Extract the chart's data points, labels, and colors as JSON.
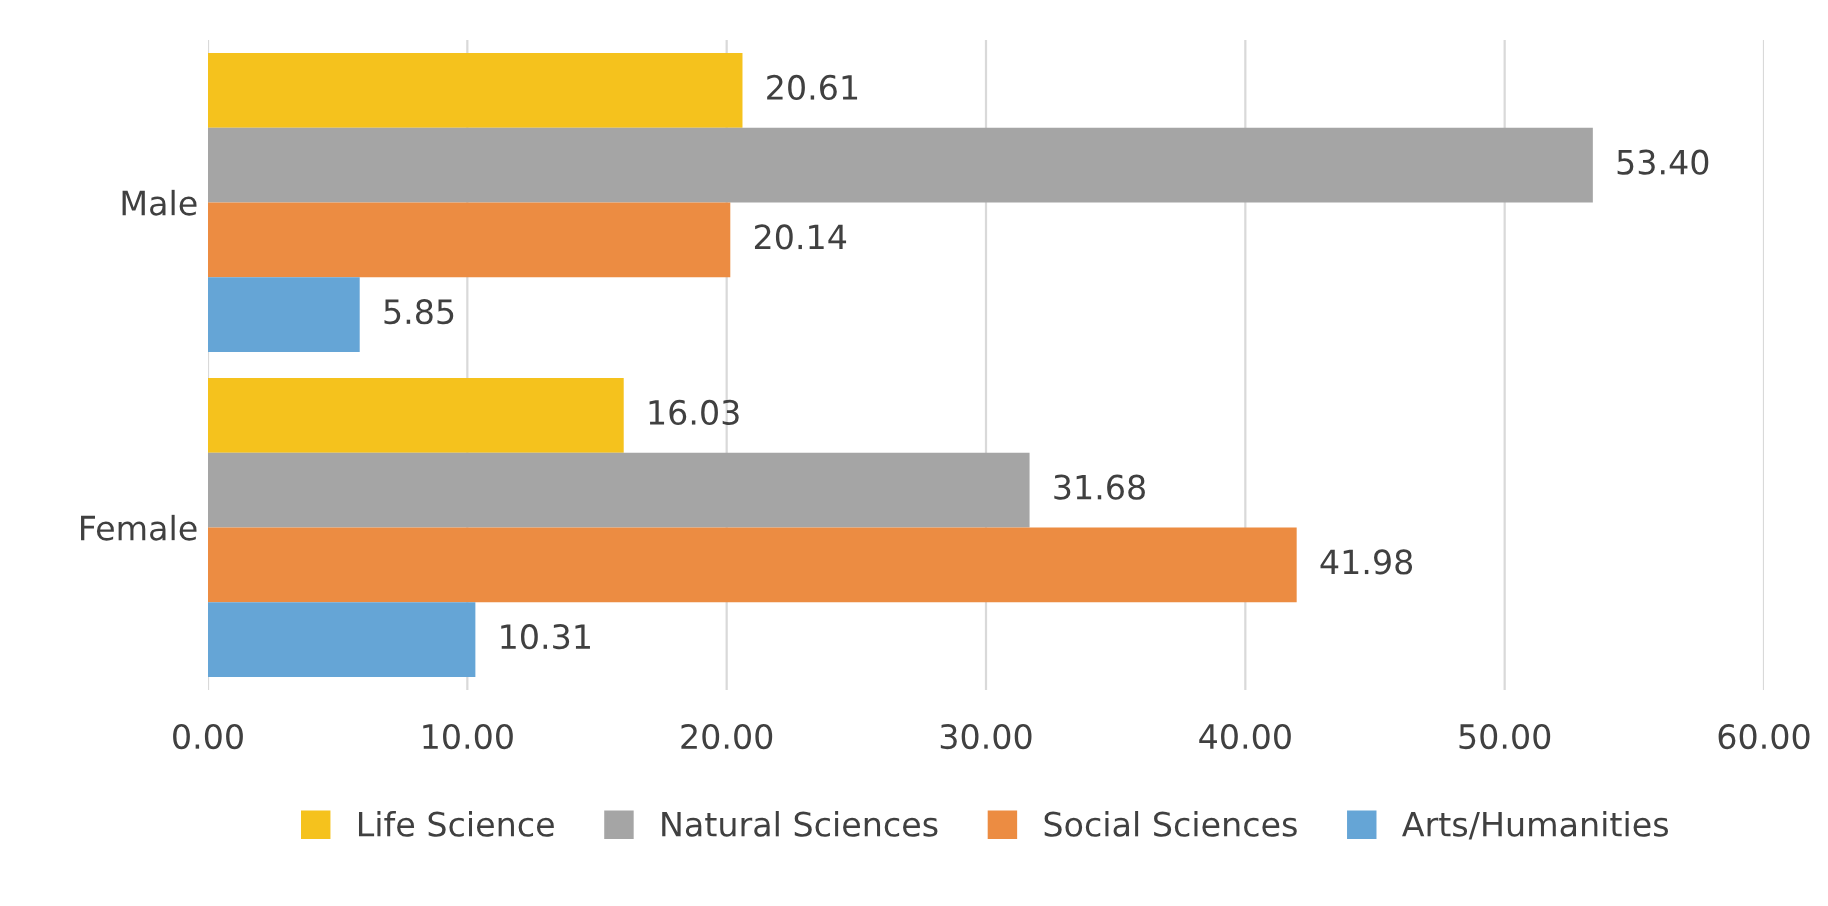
{
  "chart_data": {
    "type": "bar",
    "orientation": "horizontal",
    "categories": [
      "Male",
      "Female"
    ],
    "series": [
      {
        "name": "Life Science",
        "color": "#f5c21d",
        "values": [
          20.61,
          16.03
        ],
        "value_labels": [
          "20.61",
          "16.03"
        ]
      },
      {
        "name": "Natural Sciences",
        "color": "#a5a5a5",
        "values": [
          53.4,
          31.68
        ],
        "value_labels": [
          "53.40",
          "31.68"
        ]
      },
      {
        "name": "Social Sciences",
        "color": "#ec8c42",
        "values": [
          20.14,
          41.98
        ],
        "value_labels": [
          "20.14",
          "41.98"
        ]
      },
      {
        "name": "Arts/Humanities",
        "color": "#65a5d6",
        "values": [
          5.85,
          10.31
        ],
        "value_labels": [
          "5.85",
          "10.31"
        ]
      }
    ],
    "xlim": [
      0,
      60
    ],
    "xticks": [
      {
        "value": 0,
        "label": "0.00"
      },
      {
        "value": 10,
        "label": "10.00"
      },
      {
        "value": 20,
        "label": "20.00"
      },
      {
        "value": 30,
        "label": "30.00"
      },
      {
        "value": 40,
        "label": "40.00"
      },
      {
        "value": 50,
        "label": "50.00"
      },
      {
        "value": 60,
        "label": "60.00"
      }
    ],
    "grid": "x",
    "legend": "bottom"
  }
}
